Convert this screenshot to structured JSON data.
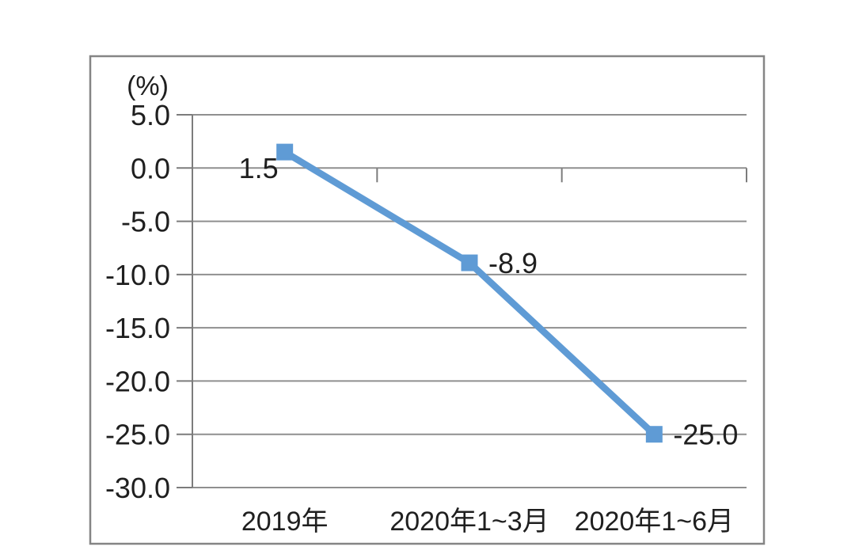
{
  "chart_data": {
    "type": "line",
    "title": "",
    "unit_label": "(%)",
    "categories": [
      "2019年",
      "2020年1~3月",
      "2020年1~6月"
    ],
    "series": [
      {
        "name": "",
        "values": [
          1.5,
          -8.9,
          -25.0
        ],
        "data_labels": [
          "1.5",
          "-8.9",
          "-25.0"
        ],
        "label_positions": [
          "below-left",
          "right",
          "right"
        ]
      }
    ],
    "y_ticks": [
      5.0,
      0.0,
      -5.0,
      -10.0,
      -15.0,
      -20.0,
      -25.0,
      -30.0
    ],
    "y_tick_labels": [
      "5.0",
      "0.0",
      "-5.0",
      "-10.0",
      "-15.0",
      "-20.0",
      "-25.0",
      "-30.0"
    ],
    "ylim": [
      -30,
      5
    ],
    "xlabel": "",
    "ylabel": "(%)",
    "grid": true,
    "legend": false,
    "colors": {
      "line": "#5f9bd5",
      "marker": "#5f9bd5",
      "grid": "#8f8f8f",
      "axis": "#7c7c7c",
      "frame": "#858585",
      "text": "#1f1f1f",
      "background": "#ffffff"
    }
  }
}
